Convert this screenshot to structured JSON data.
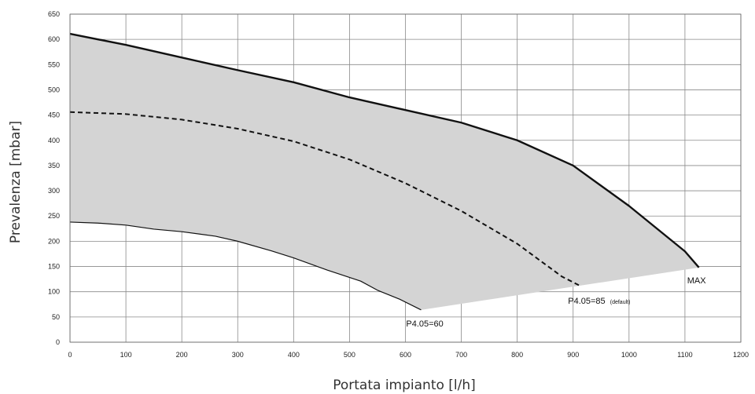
{
  "chart_data": {
    "type": "area",
    "title": "",
    "xlabel": "Portata impianto [l/h]",
    "ylabel": "Prevalenza [mbar]",
    "xlim": [
      0,
      1200
    ],
    "ylim": [
      0,
      650
    ],
    "x_ticks": [
      0,
      100,
      200,
      300,
      400,
      500,
      600,
      700,
      800,
      900,
      1000,
      1100,
      1200
    ],
    "y_ticks": [
      0,
      50,
      100,
      150,
      200,
      250,
      300,
      350,
      400,
      450,
      500,
      550,
      600,
      650
    ],
    "grid": true,
    "fill_color": "#d4d4d4",
    "series": [
      {
        "name": "MAX",
        "style": "solid",
        "color": "#111111",
        "points": [
          [
            0,
            611
          ],
          [
            100,
            589
          ],
          [
            200,
            564
          ],
          [
            300,
            539
          ],
          [
            400,
            515
          ],
          [
            500,
            485
          ],
          [
            600,
            460
          ],
          [
            700,
            435
          ],
          [
            800,
            400
          ],
          [
            900,
            350
          ],
          [
            1000,
            270
          ],
          [
            1100,
            180
          ],
          [
            1125,
            148
          ]
        ]
      },
      {
        "name": "P4.05=85 (default)",
        "style": "dashed",
        "color": "#111111",
        "points": [
          [
            0,
            456
          ],
          [
            100,
            452
          ],
          [
            200,
            441
          ],
          [
            300,
            423
          ],
          [
            400,
            398
          ],
          [
            500,
            362
          ],
          [
            600,
            315
          ],
          [
            700,
            260
          ],
          [
            800,
            195
          ],
          [
            880,
            130
          ],
          [
            912,
            112
          ]
        ]
      },
      {
        "name": "P4.05=60",
        "style": "solid",
        "color": "#111111",
        "points": [
          [
            0,
            238
          ],
          [
            50,
            236
          ],
          [
            100,
            232
          ],
          [
            150,
            224
          ],
          [
            200,
            219
          ],
          [
            260,
            210
          ],
          [
            300,
            200
          ],
          [
            360,
            181
          ],
          [
            400,
            167
          ],
          [
            460,
            143
          ],
          [
            520,
            121
          ],
          [
            550,
            103
          ],
          [
            590,
            85
          ],
          [
            628,
            64
          ]
        ]
      }
    ],
    "annotations": [
      {
        "id": "max",
        "text": "MAX",
        "x": 1125,
        "y": 148
      },
      {
        "id": "p85",
        "text": "P4.05=85",
        "small": "(default)",
        "x": 912,
        "y": 112
      },
      {
        "id": "p60",
        "text": "P4.05=60",
        "x": 628,
        "y": 64
      }
    ]
  }
}
